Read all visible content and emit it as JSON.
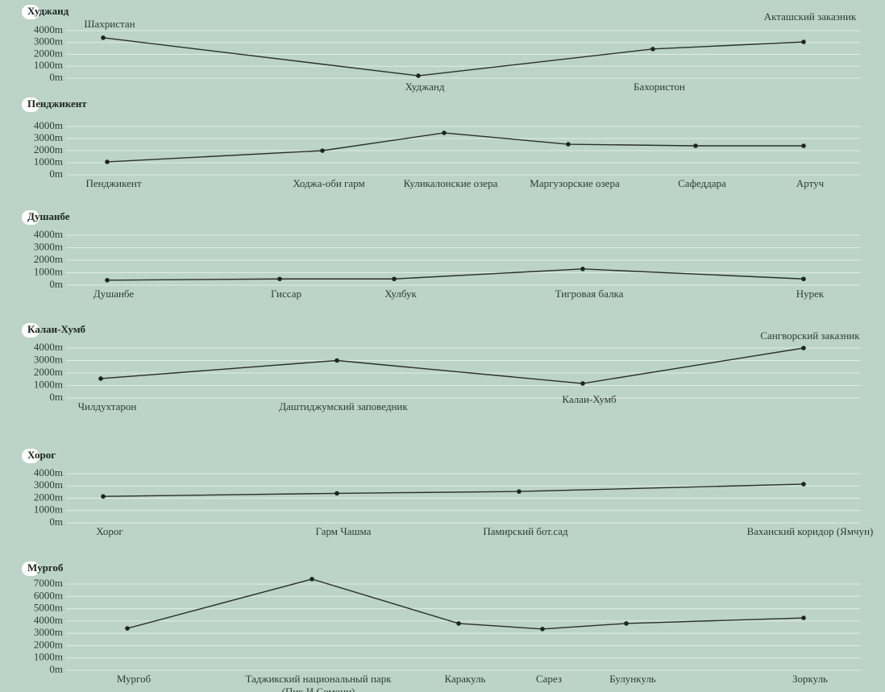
{
  "chart_data": [
    {
      "type": "line",
      "title": "Худжанд",
      "categories": [
        "Шахристан",
        "Худжанд",
        "Бахористон",
        "Акташский заказник"
      ],
      "values": [
        3400,
        200,
        2450,
        3050
      ],
      "ylim": [
        0,
        4000
      ],
      "yticks": [
        {
          "value": 0,
          "label": "0m"
        },
        {
          "value": 1000,
          "label": "1000m"
        },
        {
          "value": 2000,
          "label": "2000m"
        },
        {
          "value": 3000,
          "label": "3000m"
        },
        {
          "value": 4000,
          "label": "4000m"
        }
      ]
    },
    {
      "type": "line",
      "title": "Пенджикент",
      "categories": [
        "Пенджикент",
        "Ходжа-оби гарм",
        "Куликалонские озера",
        "Маргузорские озера",
        "Сафеддара",
        "Артуч"
      ],
      "values": [
        1070,
        2000,
        3470,
        2530,
        2400,
        2400
      ],
      "ylim": [
        0,
        4000
      ],
      "yticks": [
        {
          "value": 0,
          "label": "0m"
        },
        {
          "value": 1000,
          "label": "1000m"
        },
        {
          "value": 2000,
          "label": "2000m"
        },
        {
          "value": 3000,
          "label": "3000m"
        },
        {
          "value": 4000,
          "label": "4000m"
        }
      ]
    },
    {
      "type": "line",
      "title": "Душанбе",
      "categories": [
        "Душанбе",
        "Гиссар",
        "Хулбук",
        "Тигровая балка",
        "Нурек"
      ],
      "values": [
        400,
        500,
        500,
        1300,
        500
      ],
      "ylim": [
        0,
        4000
      ],
      "yticks": [
        {
          "value": 0,
          "label": "0m"
        },
        {
          "value": 1000,
          "label": "1000m"
        },
        {
          "value": 2000,
          "label": "2000m"
        },
        {
          "value": 3000,
          "label": "3000m"
        },
        {
          "value": 4000,
          "label": "4000m"
        }
      ]
    },
    {
      "type": "line",
      "title": "Калаи-Хумб",
      "categories": [
        "Чилдухтарон",
        "Даштиджумский заповедник",
        "Калаи-Хумб",
        "Сангворский заказник"
      ],
      "values": [
        1550,
        3000,
        1160,
        4000
      ],
      "ylim": [
        0,
        4000
      ],
      "yticks": [
        {
          "value": 0,
          "label": "0m"
        },
        {
          "value": 1000,
          "label": "1000m"
        },
        {
          "value": 2000,
          "label": "2000m"
        },
        {
          "value": 3000,
          "label": "3000m"
        },
        {
          "value": 4000,
          "label": "4000m"
        }
      ]
    },
    {
      "type": "line",
      "title": "Хорог",
      "categories": [
        "Хорог",
        "Гарм Чашма",
        "Памирский бот.сад",
        "Ваханский коридор (Ямчун)"
      ],
      "values": [
        2150,
        2400,
        2550,
        3150
      ],
      "ylim": [
        0,
        4000
      ],
      "yticks": [
        {
          "value": 0,
          "label": "0m"
        },
        {
          "value": 1000,
          "label": "1000m"
        },
        {
          "value": 2000,
          "label": "2000m"
        },
        {
          "value": 3000,
          "label": "3000m"
        },
        {
          "value": 4000,
          "label": "4000m"
        }
      ]
    },
    {
      "type": "line",
      "title": "Мургоб",
      "categories": [
        "Мургоб",
        "Таджикский национальный парк\n(Пик И.Сомони)",
        "Каракуль",
        "Сарез",
        "Булункуль",
        "Зоркуль"
      ],
      "values": [
        3400,
        7400,
        3800,
        3350,
        3800,
        4250
      ],
      "ylim": [
        0,
        7000
      ],
      "yticks": [
        {
          "value": 0,
          "label": "0m"
        },
        {
          "value": 1000,
          "label": "1000m"
        },
        {
          "value": 2000,
          "label": "2000m"
        },
        {
          "value": 3000,
          "label": "3000m"
        },
        {
          "value": 4000,
          "label": "4000m"
        },
        {
          "value": 5000,
          "label": "5000m"
        },
        {
          "value": 6000,
          "label": "6000m"
        },
        {
          "value": 7000,
          "label": "7000m"
        }
      ]
    }
  ]
}
